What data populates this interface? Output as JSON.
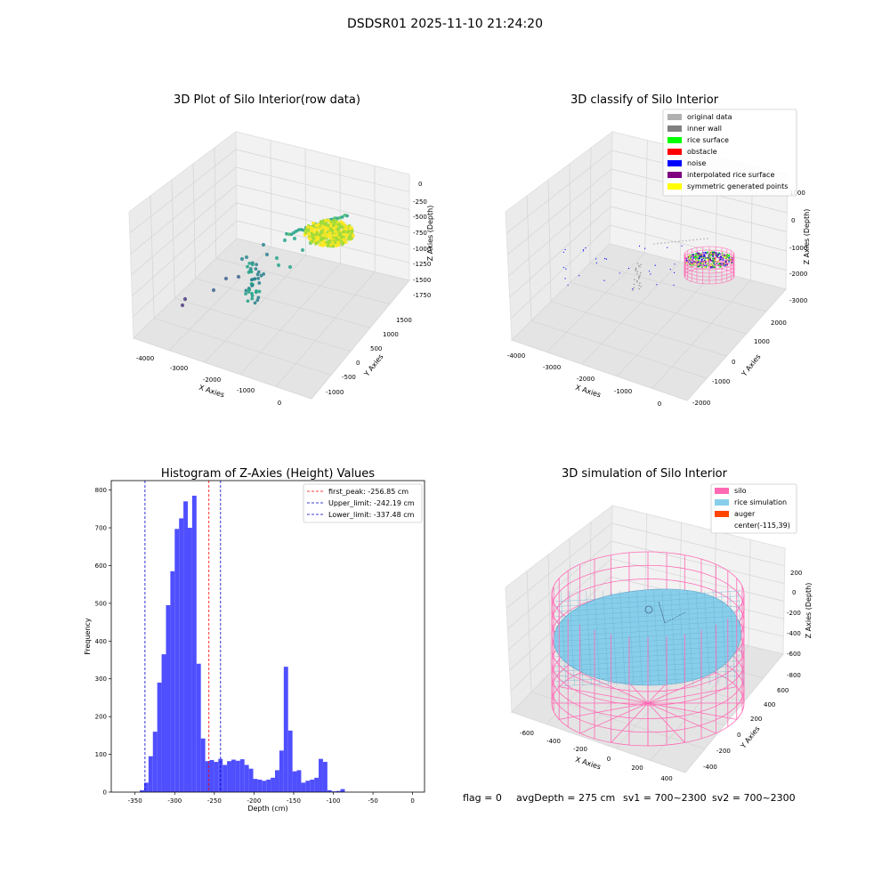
{
  "figure": {
    "suptitle": "DSDSR01 2025-11-10 21:24:20",
    "footer": {
      "flag": "flag = 0",
      "avg_depth": "avgDepth = 275 cm",
      "sv1": "sv1 = 700~2300",
      "sv2": "sv2 = 700~2300"
    }
  },
  "colors": {
    "histogram_bar": "#4b4bff",
    "first_peak_line": "#ff0000",
    "limit_lines": "#0000cc",
    "pane_gray": "#ececec",
    "grid": "#d6d6d6"
  },
  "panel1": {
    "title": "3D Plot of Silo Interior(row data)",
    "x_axis_label": "X Axies",
    "y_axis_label": "Y Axies",
    "z_axis_label": "Z Axies (Depth)",
    "x_ticks": [
      "-4000",
      "-3000",
      "-2000",
      "-1000",
      "0"
    ],
    "y_ticks": [
      "-1000",
      "-500",
      "0",
      "500",
      "1000",
      "1500"
    ],
    "z_ticks": [
      "0",
      "-250",
      "-500",
      "-750",
      "-1000",
      "-1250",
      "-1500",
      "-1750"
    ],
    "colormap": "viridis"
  },
  "panel2": {
    "title": "3D classify of Silo Interior",
    "x_axis_label": "X Axies",
    "y_axis_label": "Y Axies",
    "z_axis_label": "Z Axies (Depth)",
    "x_ticks": [
      "-4000",
      "-3000",
      "-2000",
      "-1000",
      "0"
    ],
    "y_ticks": [
      "-2000",
      "-1000",
      "0",
      "1000",
      "2000"
    ],
    "z_ticks": [
      "1000",
      "0",
      "-1000",
      "-2000",
      "-3000"
    ],
    "legend": [
      {
        "label": "original data",
        "color": "#b0b0b0"
      },
      {
        "label": "inner wall",
        "color": "#808080"
      },
      {
        "label": "rice surface",
        "color": "#00ff00"
      },
      {
        "label": "obstacle",
        "color": "#ff0000"
      },
      {
        "label": "noise",
        "color": "#0000ff"
      },
      {
        "label": "interpolated rice surface",
        "color": "#800080"
      },
      {
        "label": "symmetric generated points",
        "color": "#ffff00"
      }
    ],
    "wireframe_color": "#ff69b4"
  },
  "panel4": {
    "title": "3D simulation of Silo Interior",
    "x_axis_label": "X Axies",
    "y_axis_label": "Y Axies",
    "z_axis_label": "Z Axies (Depth)",
    "x_ticks": [
      "-600",
      "-400",
      "-200",
      "0",
      "200",
      "400"
    ],
    "y_ticks": [
      "-400",
      "-200",
      "0",
      "200",
      "400",
      "600"
    ],
    "z_ticks": [
      "200",
      "0",
      "-200",
      "-400",
      "-600",
      "-800"
    ],
    "legend": [
      {
        "label": "silo",
        "color": "#ff69b4"
      },
      {
        "label": "rice simulation",
        "color": "#87ceeb"
      },
      {
        "label": "auger",
        "color": "#ff4500"
      },
      {
        "label": "center(-115,39)",
        "color": ""
      }
    ]
  },
  "chart_data": [
    {
      "type": "histogram",
      "title": "Histogram of Z-Axies (Height) Values",
      "xlabel": "Depth (cm)",
      "ylabel": "Frequency",
      "xlim": [
        -380,
        15
      ],
      "ylim": [
        0,
        825
      ],
      "x_ticks": [
        -350,
        -300,
        -250,
        -200,
        -150,
        -100,
        -50,
        0
      ],
      "y_ticks": [
        0,
        100,
        200,
        300,
        400,
        500,
        600,
        700,
        800
      ],
      "bin_width": 5.5,
      "bins": [
        {
          "x0": -344,
          "count": 5
        },
        {
          "x0": -338.5,
          "count": 25
        },
        {
          "x0": -333,
          "count": 95
        },
        {
          "x0": -327.5,
          "count": 160
        },
        {
          "x0": -322,
          "count": 290
        },
        {
          "x0": -316.5,
          "count": 365
        },
        {
          "x0": -311,
          "count": 495
        },
        {
          "x0": -305.5,
          "count": 585
        },
        {
          "x0": -300,
          "count": 697
        },
        {
          "x0": -294.5,
          "count": 725
        },
        {
          "x0": -289,
          "count": 770
        },
        {
          "x0": -283.5,
          "count": 700
        },
        {
          "x0": -278,
          "count": 785
        },
        {
          "x0": -272.5,
          "count": 340
        },
        {
          "x0": -267,
          "count": 142
        },
        {
          "x0": -261.5,
          "count": 82
        },
        {
          "x0": -256,
          "count": 85
        },
        {
          "x0": -250.5,
          "count": 80
        },
        {
          "x0": -245,
          "count": 88
        },
        {
          "x0": -239.5,
          "count": 72
        },
        {
          "x0": -234,
          "count": 82
        },
        {
          "x0": -228.5,
          "count": 86
        },
        {
          "x0": -223,
          "count": 83
        },
        {
          "x0": -217.5,
          "count": 87
        },
        {
          "x0": -212,
          "count": 72
        },
        {
          "x0": -206.5,
          "count": 62
        },
        {
          "x0": -201,
          "count": 35
        },
        {
          "x0": -195.5,
          "count": 33
        },
        {
          "x0": -190,
          "count": 30
        },
        {
          "x0": -184.5,
          "count": 33
        },
        {
          "x0": -179,
          "count": 38
        },
        {
          "x0": -173.5,
          "count": 58
        },
        {
          "x0": -168,
          "count": 110
        },
        {
          "x0": -162.5,
          "count": 332
        },
        {
          "x0": -157,
          "count": 163
        },
        {
          "x0": -151.5,
          "count": 55
        },
        {
          "x0": -146,
          "count": 58
        },
        {
          "x0": -140.5,
          "count": 25
        },
        {
          "x0": -135,
          "count": 30
        },
        {
          "x0": -129.5,
          "count": 33
        },
        {
          "x0": -124,
          "count": 38
        },
        {
          "x0": -118.5,
          "count": 88
        },
        {
          "x0": -113,
          "count": 80
        },
        {
          "x0": -107.5,
          "count": 5
        },
        {
          "x0": -102,
          "count": 2
        },
        {
          "x0": -96.5,
          "count": 3
        },
        {
          "x0": -91,
          "count": 8
        }
      ],
      "vlines": [
        {
          "label": "first_peak: -256.85 cm",
          "x": -256.85,
          "color": "#ff0000"
        },
        {
          "label": "Upper_limit: -242.19 cm",
          "x": -242.19,
          "color": "#0000cc"
        },
        {
          "label": "Lower_limit: -337.48 cm",
          "x": -337.48,
          "color": "#0000cc"
        }
      ],
      "legend_position": "top-right"
    }
  ]
}
